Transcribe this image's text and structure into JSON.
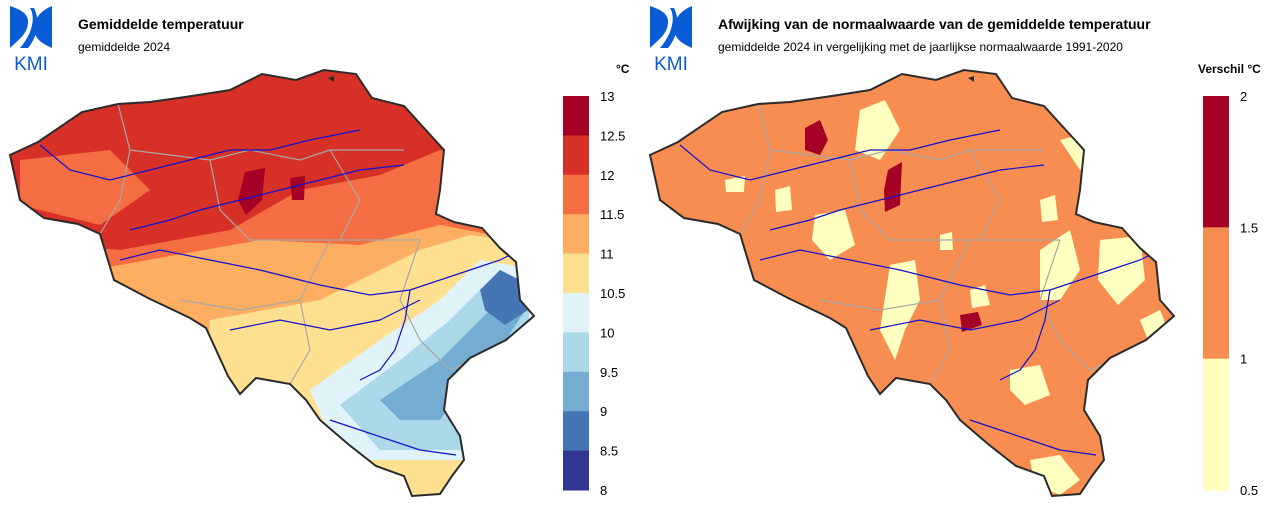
{
  "logo": {
    "text": "KMI",
    "color": "#0a5bd6"
  },
  "left_map": {
    "title": "Gemiddelde temperatuur",
    "subtitle": "gemiddelde 2024",
    "unit": "°C",
    "legend": {
      "ticks": [
        "13",
        "12.5",
        "12",
        "11.5",
        "11",
        "10.5",
        "10",
        "9.5",
        "9",
        "8.5",
        "8"
      ],
      "colors": [
        "#a50026",
        "#d73027",
        "#f46d43",
        "#fdae61",
        "#fee090",
        "#e0f3f8",
        "#abd9e9",
        "#74add1",
        "#4575b4",
        "#313695"
      ]
    }
  },
  "right_map": {
    "title": "Afwijking van de normaalwaarde van de gemiddelde temperatuur",
    "subtitle": "gemiddelde 2024 in vergelijking met de jaarlijkse normaalwaarde 1991-2020",
    "unit": "Verschil °C",
    "legend": {
      "ticks": [
        "2",
        "1.5",
        "1",
        "0.5"
      ],
      "colors": [
        "#a50026",
        "#f88d52",
        "#ffffbf"
      ]
    }
  },
  "colors": {
    "border": "#2b2b2b",
    "rivers": "#1010d0",
    "provinces": "#a8a8a8"
  }
}
